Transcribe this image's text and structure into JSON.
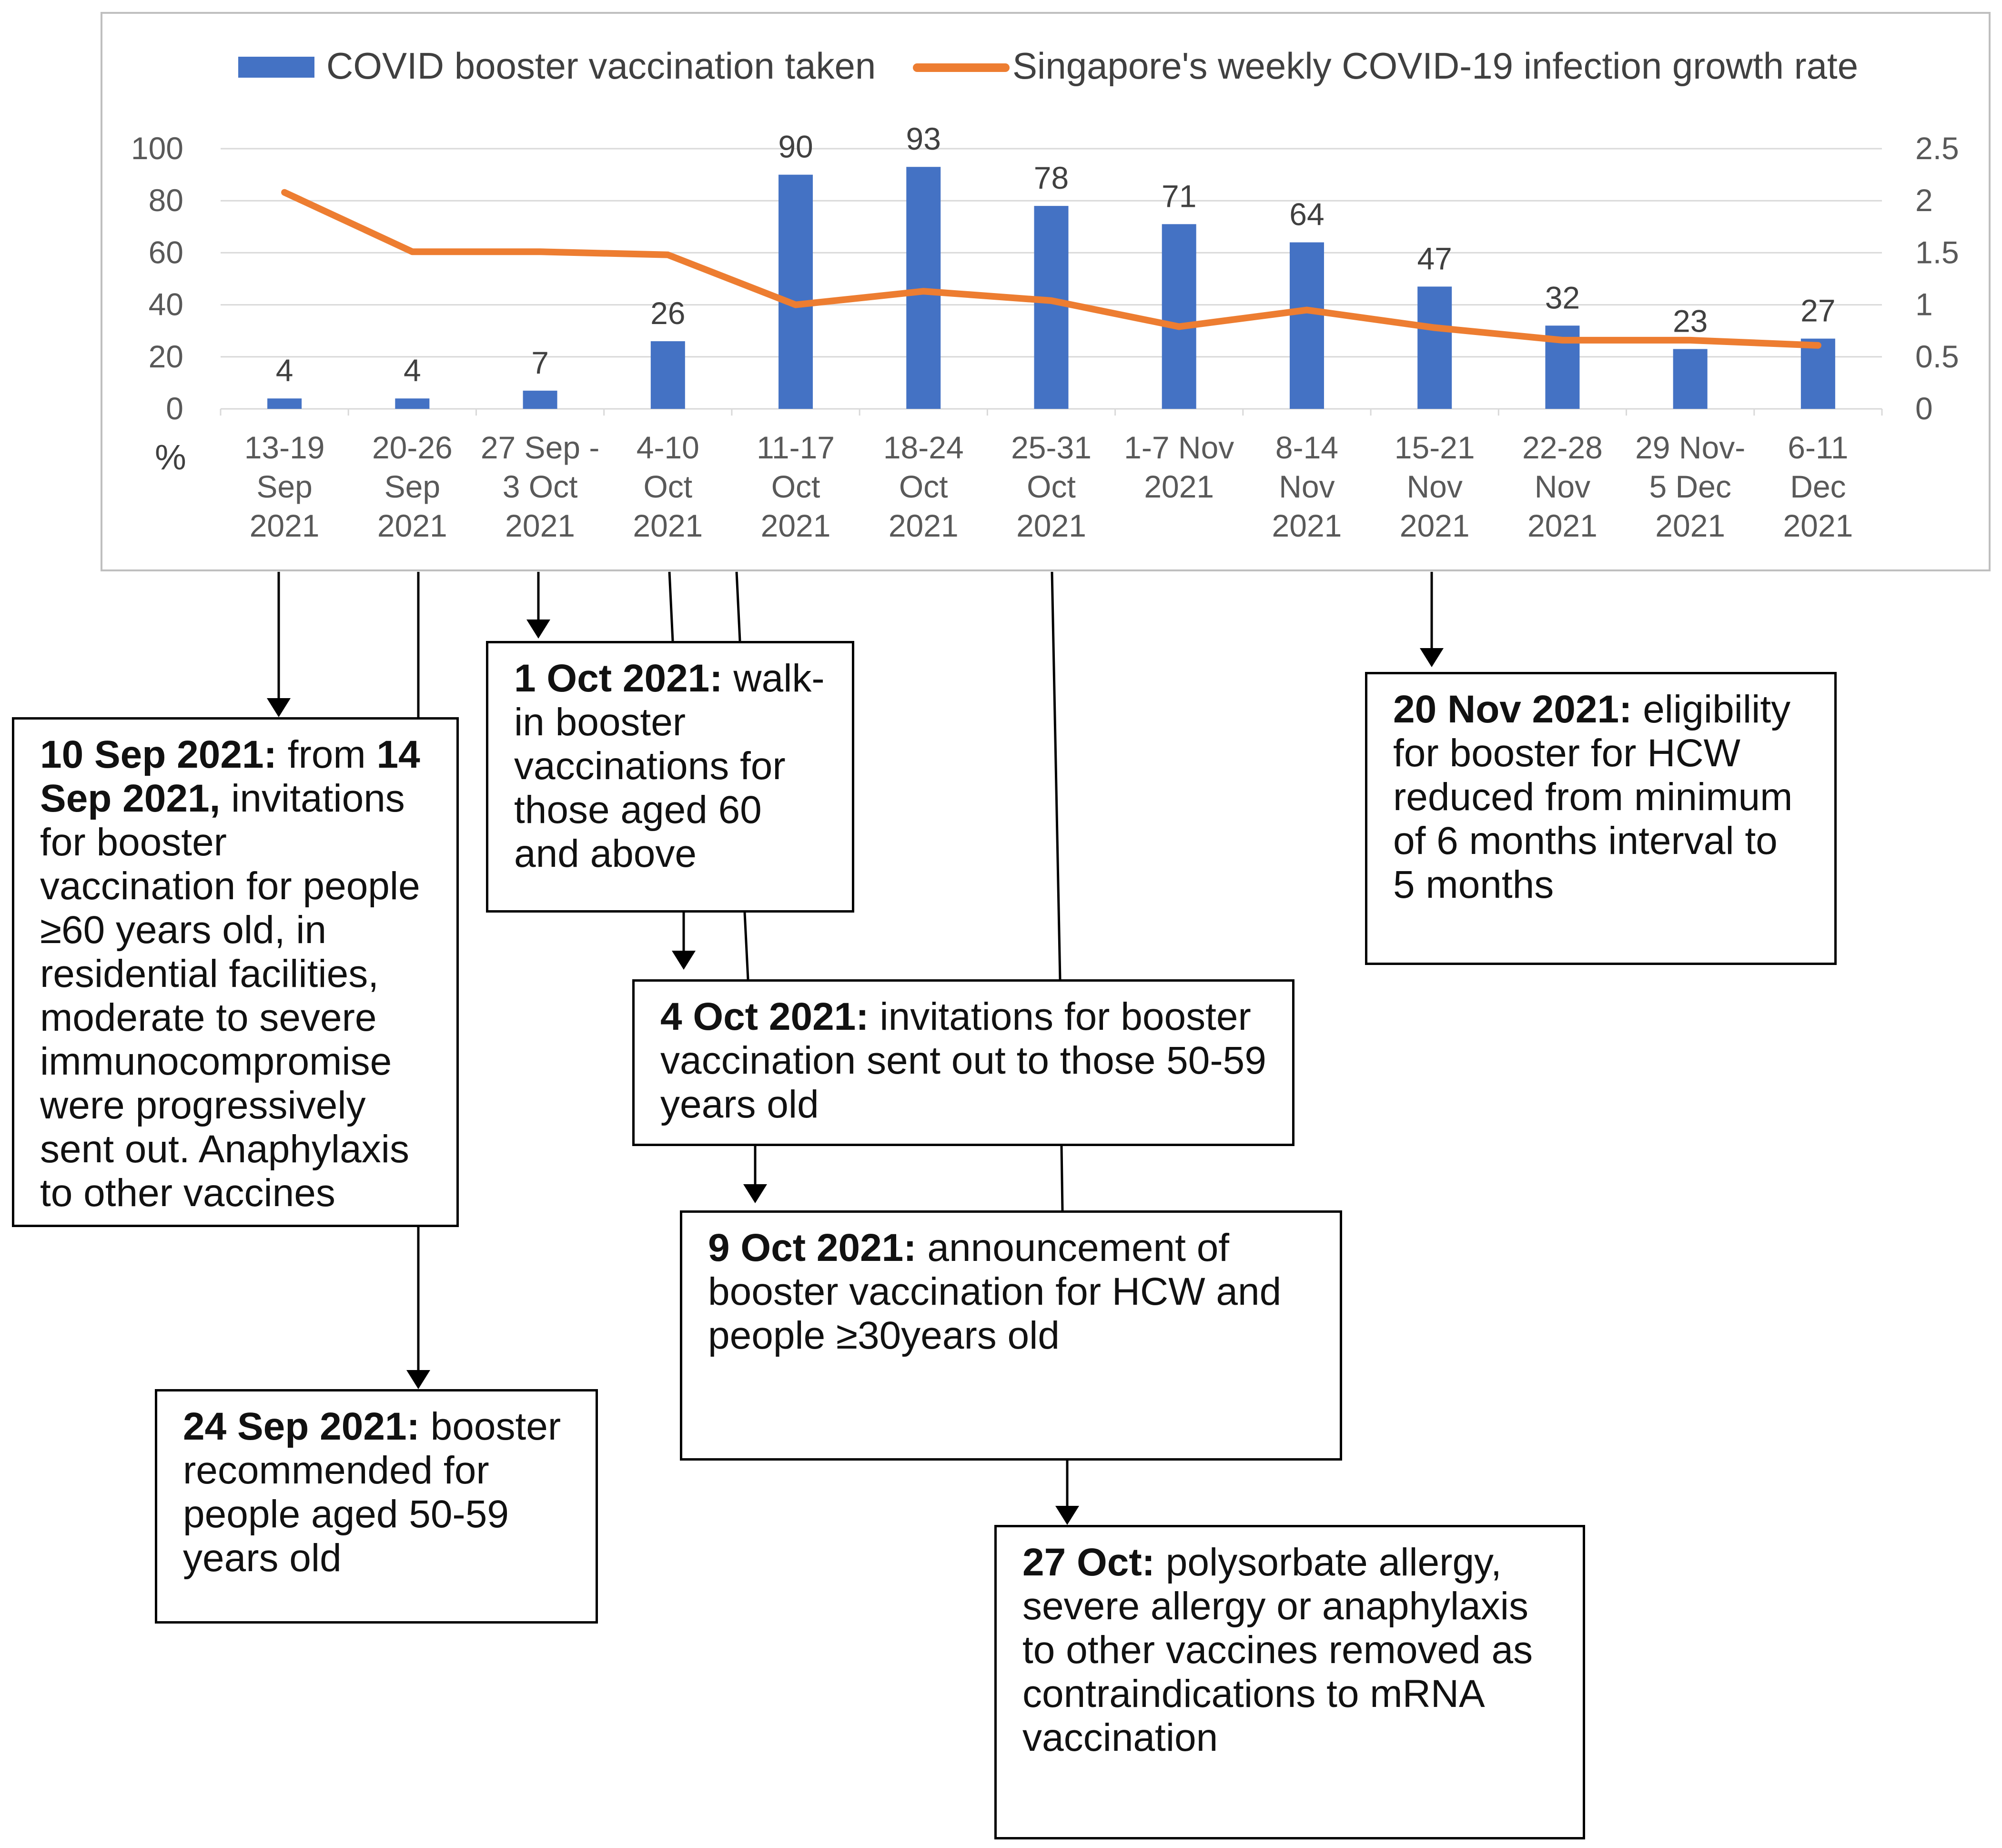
{
  "chart_data": {
    "type": "bar+line",
    "legend": {
      "bar_label": "COVID booster vaccination taken",
      "line_label": "Singapore's weekly COVID-19 infection growth rate",
      "placement": "top"
    },
    "categories": [
      [
        "13-19",
        "Sep",
        "2021"
      ],
      [
        "20-26",
        "Sep",
        "2021"
      ],
      [
        "27 Sep -",
        "3 Oct",
        "2021"
      ],
      [
        "4-10",
        "Oct",
        "2021"
      ],
      [
        "11-17",
        "Oct",
        "2021"
      ],
      [
        "18-24",
        "Oct",
        "2021"
      ],
      [
        "25-31",
        "Oct",
        "2021"
      ],
      [
        "1-7 Nov",
        "2021",
        ""
      ],
      [
        "8-14",
        "Nov",
        "2021"
      ],
      [
        "15-21",
        "Nov",
        "2021"
      ],
      [
        "22-28",
        "Nov",
        "2021"
      ],
      [
        "29 Nov-",
        "5 Dec",
        "2021"
      ],
      [
        "6-11",
        "Dec",
        "2021"
      ]
    ],
    "series": [
      {
        "name": "COVID booster vaccination taken",
        "type": "bar",
        "axis": "left",
        "values": [
          4,
          4,
          7,
          26,
          90,
          93,
          78,
          71,
          64,
          47,
          32,
          23,
          27
        ],
        "color": "#4472C4"
      },
      {
        "name": "Singapore's weekly COVID-19 infection growth rate",
        "type": "line",
        "axis": "right",
        "values": [
          2.08,
          1.51,
          1.51,
          1.48,
          1.0,
          1.13,
          1.04,
          0.79,
          0.95,
          0.78,
          0.66,
          0.66,
          0.61
        ],
        "color": "#ED7D31"
      }
    ],
    "y_left": {
      "min": 0,
      "max": 100,
      "ticks": [
        "0",
        "20",
        "40",
        "60",
        "80",
        "100"
      ],
      "unit": "%"
    },
    "y_right": {
      "min": 0,
      "max": 2.5,
      "ticks": [
        "0",
        "0.5",
        "1",
        "1.5",
        "2",
        "2.5"
      ]
    },
    "grid": true
  },
  "notes": {
    "n1": {
      "bold1": "10 Sep 2021:",
      "text1": " from ",
      "bold2": "14 Sep 2021,",
      "text2": " invitations for booster vaccination for people ≥60 years old, in residential facilities, moderate to severe immunocompromise were progressively sent out. Anaphylaxis to other vaccines"
    },
    "n2": {
      "bold": "24 Sep 2021:",
      "text": " booster recommended for people aged 50-59 years old"
    },
    "n3": {
      "bold": "1 Oct 2021:",
      "text": " walk-in booster vaccinations for those aged 60 and above"
    },
    "n4": {
      "bold": "4 Oct 2021:",
      "text": " invitations for booster vaccination sent out to those 50-59 years old"
    },
    "n5": {
      "bold": "9 Oct 2021:",
      "text": " announcement of booster vaccination for HCW and people ≥30years old"
    },
    "n6": {
      "bold": "27 Oct:",
      "text": " polysorbate allergy, severe allergy or anaphylaxis to other vaccines removed as contraindications to mRNA vaccination"
    },
    "n7": {
      "bold": "20 Nov 2021:",
      "text": " eligibility for booster for HCW reduced from minimum of 6 months interval to 5 months"
    }
  },
  "colors": {
    "bar": "#4472C4",
    "line": "#ED7D31",
    "grid": "#D9D9D9",
    "frame": "#BFBFBF"
  }
}
